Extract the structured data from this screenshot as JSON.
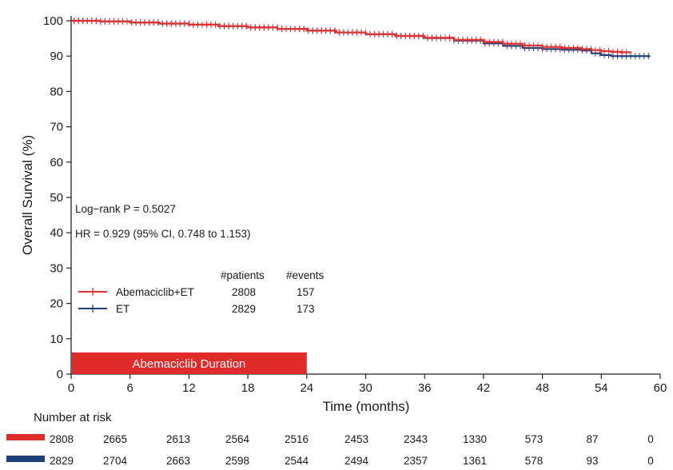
{
  "chart_data": {
    "type": "line",
    "ylabel": "Overall Survival (%)",
    "xlabel": "Time (months)",
    "xlim": [
      0,
      60
    ],
    "ylim": [
      0,
      100
    ],
    "xticks": [
      0,
      6,
      12,
      18,
      24,
      30,
      36,
      42,
      48,
      54,
      60
    ],
    "yticks": [
      0,
      10,
      20,
      30,
      40,
      50,
      60,
      70,
      80,
      90,
      100
    ],
    "grid": false,
    "annotations": {
      "logrank": "Log−rank P = 0.5027",
      "hr": "HR = 0.929 (95% CI, 0.748 to 1.153)"
    },
    "legend": {
      "placement": "lower-left",
      "patients_header": "#patients",
      "events_header": "#events"
    },
    "series": [
      {
        "name": "Abemaciclib+ET",
        "color": "#e03030",
        "patients": "2808",
        "events": "157",
        "x": [
          0,
          3,
          6,
          9,
          12,
          15,
          18,
          21,
          24,
          27,
          30,
          33,
          36,
          39,
          42,
          44,
          46,
          48,
          50,
          52,
          53,
          54,
          55,
          56,
          57
        ],
        "y": [
          100,
          99.8,
          99.5,
          99.2,
          98.9,
          98.5,
          98.1,
          97.7,
          97.2,
          96.7,
          96.2,
          95.7,
          95.2,
          94.6,
          94.0,
          93.5,
          93.0,
          92.6,
          92.3,
          92.0,
          91.7,
          91.4,
          91.2,
          91.1,
          91.0
        ]
      },
      {
        "name": "ET",
        "color": "#1f3f7a",
        "patients": "2829",
        "events": "173",
        "x": [
          0,
          3,
          6,
          9,
          12,
          15,
          18,
          21,
          24,
          27,
          30,
          33,
          36,
          39,
          42,
          44,
          46,
          48,
          50,
          52,
          53,
          54,
          55,
          56,
          58,
          59
        ],
        "y": [
          100,
          99.8,
          99.5,
          99.2,
          98.9,
          98.5,
          98.1,
          97.7,
          97.2,
          96.7,
          96.2,
          95.7,
          95.1,
          94.4,
          93.6,
          92.9,
          92.3,
          92.0,
          91.8,
          91.6,
          90.8,
          90.3,
          90.0,
          90.0,
          90.0,
          90.0
        ]
      }
    ],
    "duration_bar": {
      "label": "Abemaciclib Duration",
      "from": 0,
      "to": 24,
      "color": "#e02b2b"
    },
    "risk_table": {
      "title": "Number at risk",
      "rows": [
        {
          "color": "#e02b2b",
          "values": [
            "2808",
            "2665",
            "2613",
            "2564",
            "2516",
            "2453",
            "2343",
            "1330",
            "573",
            "87",
            "0"
          ]
        },
        {
          "color": "#1f3f7a",
          "values": [
            "2829",
            "2704",
            "2663",
            "2598",
            "2544",
            "2494",
            "2357",
            "1361",
            "578",
            "93",
            "0"
          ]
        }
      ]
    }
  }
}
